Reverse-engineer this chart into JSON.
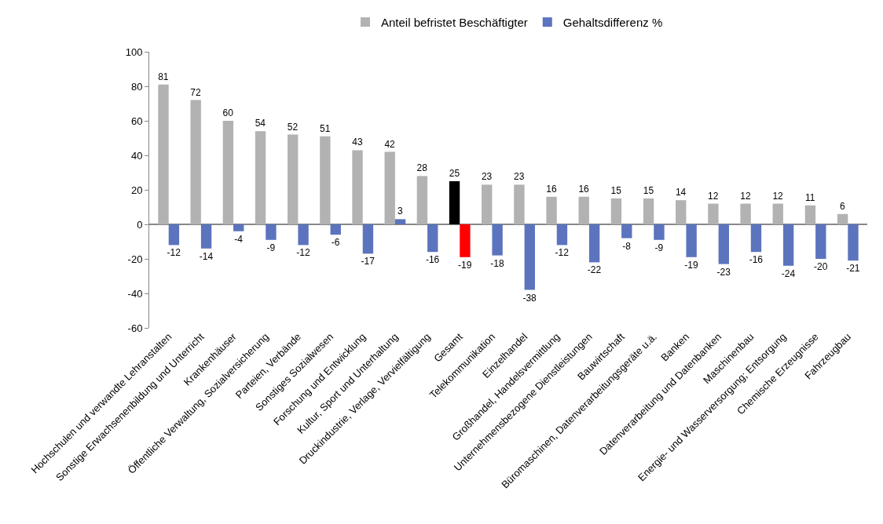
{
  "chart_data": {
    "type": "bar",
    "categories": [
      "Hochschulen und verwandte Lehranstalten",
      "Sonstige Erwachsenenbildung und Unterricht",
      "Krankenhäuser",
      "Öffentliche Verwaltung, Sozialversicherung",
      "Parteien, Verbände",
      "Sonstiges Sozialwesen",
      "Forschung und Entwicklung",
      "Kultur, Sport und Unterhaltung",
      "Druckindustrie, Verlage, Vervielfältigung",
      "Gesamt",
      "Telekommunikation",
      "Einzelhandel",
      "Großhandel, Handelsvermittlung",
      "Unternehmensbezogene Dienstleistungen",
      "Bauwirtschaft",
      "Büromaschinen, Datenverarbeitungsgeräte u.ä.",
      "Banken",
      "Datenverarbeitung und Datenbanken",
      "Maschinenbau",
      "Energie- und Wasserversorgung; Entsorgung",
      "Chemische Erzeugnisse",
      "Fahrzeugbau"
    ],
    "series": [
      {
        "name": "Anteil befristet Beschäftigter",
        "colors": [
          "#b2b2b2",
          "#b2b2b2",
          "#b2b2b2",
          "#b2b2b2",
          "#b2b2b2",
          "#b2b2b2",
          "#b2b2b2",
          "#b2b2b2",
          "#b2b2b2",
          "#000000",
          "#b2b2b2",
          "#b2b2b2",
          "#b2b2b2",
          "#b2b2b2",
          "#b2b2b2",
          "#b2b2b2",
          "#b2b2b2",
          "#b2b2b2",
          "#b2b2b2",
          "#b2b2b2",
          "#b2b2b2",
          "#b2b2b2"
        ],
        "values": [
          81,
          72,
          60,
          54,
          52,
          51,
          43,
          42,
          28,
          25,
          23,
          23,
          16,
          16,
          15,
          15,
          14,
          12,
          12,
          12,
          11,
          6
        ]
      },
      {
        "name": "Gehaltsdifferenz %",
        "colors": [
          "#5b74bd",
          "#5b74bd",
          "#5b74bd",
          "#5b74bd",
          "#5b74bd",
          "#5b74bd",
          "#5b74bd",
          "#5b74bd",
          "#5b74bd",
          "#ff0000",
          "#5b74bd",
          "#5b74bd",
          "#5b74bd",
          "#5b74bd",
          "#5b74bd",
          "#5b74bd",
          "#5b74bd",
          "#5b74bd",
          "#5b74bd",
          "#5b74bd",
          "#5b74bd",
          "#5b74bd"
        ],
        "values": [
          -12,
          -14,
          -4,
          -9,
          -12,
          -6,
          -17,
          3,
          -16,
          -19,
          -18,
          -38,
          -12,
          -22,
          -8,
          -9,
          -19,
          -23,
          -16,
          -24,
          -20,
          -21
        ]
      }
    ],
    "ylim": [
      -60,
      100
    ],
    "yticks": [
      -60,
      -40,
      -20,
      0,
      20,
      40,
      60,
      80,
      100
    ],
    "legend": "top",
    "data_labels": true
  }
}
